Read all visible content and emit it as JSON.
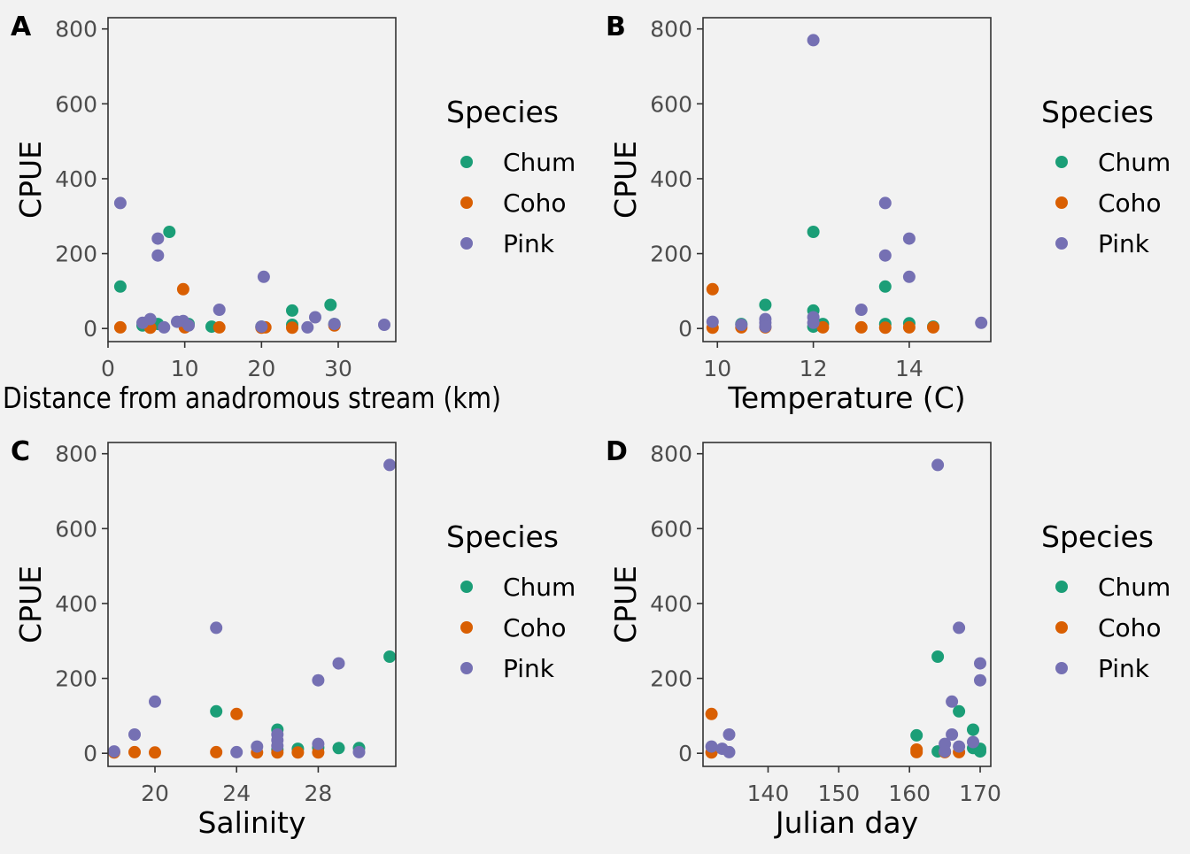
{
  "colors": {
    "background": "#f2f2f2",
    "Chum": "#1b9e77",
    "Coho": "#d95f02",
    "Pink": "#7570b3"
  },
  "legend": {
    "title": "Species",
    "entries": [
      "Chum",
      "Coho",
      "Pink"
    ]
  },
  "chart_data": [
    {
      "type": "scatter",
      "tag": "A",
      "xlabel": "Distance from anadromous stream (km)",
      "ylabel": "CPUE",
      "xlim": [
        0,
        37.5
      ],
      "ylim": [
        -35,
        830
      ],
      "xticks": [
        0,
        10,
        20,
        30
      ],
      "yticks": [
        0,
        200,
        400,
        600,
        800
      ],
      "grid": false,
      "legend_position": "right",
      "series": [
        {
          "name": "Chum",
          "points": [
            [
              1.6,
              112
            ],
            [
              4.5,
              8
            ],
            [
              6.5,
              12
            ],
            [
              8,
              258
            ],
            [
              10.5,
              12
            ],
            [
              13.5,
              5
            ],
            [
              20,
              5
            ],
            [
              24,
              48
            ],
            [
              24,
              10
            ],
            [
              29,
              63
            ],
            [
              29.5,
              12
            ]
          ]
        },
        {
          "name": "Coho",
          "points": [
            [
              1.6,
              3
            ],
            [
              5.5,
              2
            ],
            [
              9.8,
              105
            ],
            [
              10,
              3
            ],
            [
              14.5,
              3
            ],
            [
              20,
              2
            ],
            [
              20.5,
              3
            ],
            [
              24,
              2
            ],
            [
              29.5,
              8
            ]
          ]
        },
        {
          "name": "Pink",
          "points": [
            [
              1.6,
              335
            ],
            [
              4.5,
              15
            ],
            [
              5.5,
              25
            ],
            [
              6.5,
              240
            ],
            [
              6.5,
              195
            ],
            [
              7.3,
              3
            ],
            [
              9,
              18
            ],
            [
              9.8,
              20
            ],
            [
              10.5,
              8
            ],
            [
              14.5,
              50
            ],
            [
              20,
              5
            ],
            [
              20.3,
              138
            ],
            [
              26,
              3
            ],
            [
              27,
              30
            ],
            [
              29.5,
              12
            ],
            [
              36,
              10
            ]
          ]
        }
      ]
    },
    {
      "type": "scatter",
      "tag": "B",
      "xlabel": "Temperature (C)",
      "ylabel": "CPUE",
      "xlim": [
        9.7,
        15.7
      ],
      "ylim": [
        -35,
        830
      ],
      "xticks": [
        10,
        12,
        14
      ],
      "yticks": [
        0,
        200,
        400,
        600,
        800
      ],
      "grid": false,
      "legend_position": "right",
      "series": [
        {
          "name": "Chum",
          "points": [
            [
              10.5,
              12
            ],
            [
              11,
              63
            ],
            [
              12,
              258
            ],
            [
              12,
              48
            ],
            [
              12,
              5
            ],
            [
              12.2,
              12
            ],
            [
              13.5,
              112
            ],
            [
              13.5,
              12
            ],
            [
              14,
              14
            ],
            [
              14.5,
              5
            ]
          ]
        },
        {
          "name": "Coho",
          "points": [
            [
              9.9,
              105
            ],
            [
              9.9,
              2
            ],
            [
              10.5,
              3
            ],
            [
              11,
              3
            ],
            [
              12.2,
              3
            ],
            [
              13,
              3
            ],
            [
              13.5,
              2
            ],
            [
              14,
              3
            ],
            [
              14.5,
              3
            ]
          ]
        },
        {
          "name": "Pink",
          "points": [
            [
              9.9,
              18
            ],
            [
              10.5,
              10
            ],
            [
              11,
              25
            ],
            [
              11,
              15
            ],
            [
              11,
              5
            ],
            [
              12,
              770
            ],
            [
              12,
              30
            ],
            [
              12,
              15
            ],
            [
              13,
              50
            ],
            [
              13.5,
              335
            ],
            [
              13.5,
              195
            ],
            [
              14,
              240
            ],
            [
              14,
              138
            ],
            [
              15.5,
              15
            ]
          ]
        }
      ]
    },
    {
      "type": "scatter",
      "tag": "C",
      "xlabel": "Salinity",
      "ylabel": "CPUE",
      "xlim": [
        17.7,
        31.8
      ],
      "ylim": [
        -35,
        830
      ],
      "xticks": [
        20,
        24,
        28
      ],
      "yticks": [
        0,
        200,
        400,
        600,
        800
      ],
      "grid": false,
      "legend_position": "right",
      "series": [
        {
          "name": "Chum",
          "points": [
            [
              23,
              112
            ],
            [
              26,
              63
            ],
            [
              26,
              10
            ],
            [
              27,
              12
            ],
            [
              28,
              15
            ],
            [
              29,
              14
            ],
            [
              30,
              14
            ],
            [
              31.5,
              258
            ]
          ]
        },
        {
          "name": "Coho",
          "points": [
            [
              18,
              2
            ],
            [
              19,
              3
            ],
            [
              20,
              2
            ],
            [
              23,
              3
            ],
            [
              24,
              105
            ],
            [
              25,
              2
            ],
            [
              26,
              2
            ],
            [
              27,
              2
            ],
            [
              28,
              2
            ]
          ]
        },
        {
          "name": "Pink",
          "points": [
            [
              18,
              5
            ],
            [
              19,
              50
            ],
            [
              20,
              138
            ],
            [
              23,
              335
            ],
            [
              24,
              3
            ],
            [
              25,
              18
            ],
            [
              26,
              50
            ],
            [
              26,
              35
            ],
            [
              26,
              20
            ],
            [
              28,
              195
            ],
            [
              28,
              25
            ],
            [
              29,
              240
            ],
            [
              30,
              3
            ],
            [
              31.5,
              770
            ]
          ]
        }
      ]
    },
    {
      "type": "scatter",
      "tag": "D",
      "xlabel": "Julian day",
      "ylabel": "CPUE",
      "xlim": [
        130.8,
        171.5
      ],
      "ylim": [
        -35,
        830
      ],
      "xticks": [
        140,
        150,
        160,
        170
      ],
      "yticks": [
        0,
        200,
        400,
        600,
        800
      ],
      "grid": false,
      "legend_position": "right",
      "series": [
        {
          "name": "Chum",
          "points": [
            [
              161,
              48
            ],
            [
              164,
              258
            ],
            [
              164,
              5
            ],
            [
              167,
              112
            ],
            [
              169,
              63
            ],
            [
              169,
              14
            ],
            [
              170,
              12
            ],
            [
              170,
              5
            ]
          ]
        },
        {
          "name": "Coho",
          "points": [
            [
              132,
              105
            ],
            [
              132,
              2
            ],
            [
              161,
              10
            ],
            [
              161,
              3
            ],
            [
              165,
              3
            ],
            [
              167,
              3
            ]
          ]
        },
        {
          "name": "Pink",
          "points": [
            [
              132,
              18
            ],
            [
              133.5,
              12
            ],
            [
              134.5,
              50
            ],
            [
              134.5,
              3
            ],
            [
              164,
              770
            ],
            [
              165,
              25
            ],
            [
              165,
              5
            ],
            [
              166,
              138
            ],
            [
              166,
              50
            ],
            [
              167,
              335
            ],
            [
              167,
              18
            ],
            [
              169,
              30
            ],
            [
              170,
              240
            ],
            [
              170,
              195
            ]
          ]
        }
      ]
    }
  ]
}
